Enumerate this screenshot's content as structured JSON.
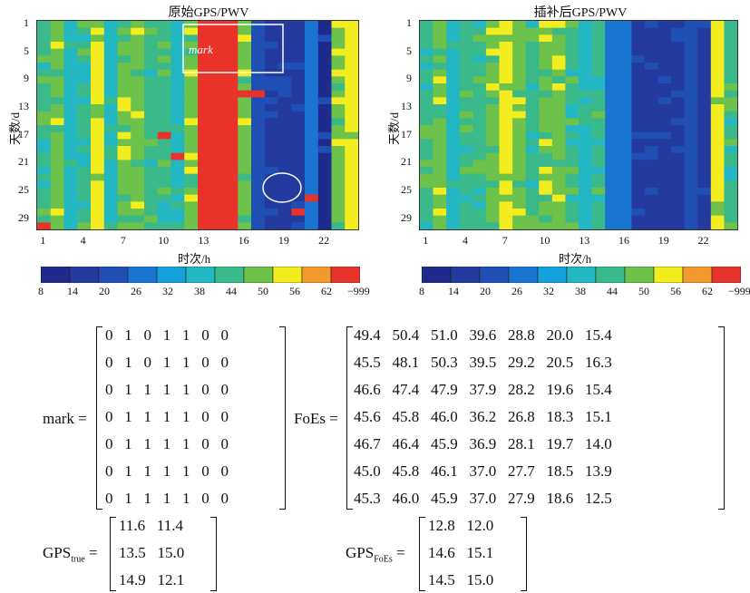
{
  "left_title": "原始GPS/PWV",
  "right_title": "插补后GPS/PWV",
  "ylabel": "天数/d",
  "xlabel": "时次/h",
  "ytick_labels": [
    "1",
    "5",
    "9",
    "13",
    "17",
    "21",
    "25",
    "29"
  ],
  "xtick_labels": [
    "1",
    "4",
    "7",
    "10",
    "13",
    "16",
    "19",
    "22"
  ],
  "mark_label": "mark",
  "colorbar": {
    "labels": [
      "8",
      "14",
      "20",
      "26",
      "32",
      "38",
      "44",
      "50",
      "56",
      "62",
      "−999"
    ],
    "colors": [
      "#1e2a8c",
      "#233a9f",
      "#1f4fb5",
      "#1a74d2",
      "#14a1dc",
      "#22b7c2",
      "#3ab98a",
      "#6cc24a",
      "#f3ec1f",
      "#f39a2e",
      "#e8322a"
    ]
  },
  "equations": {
    "mark_lhs": "mark =",
    "foes_lhs": "FoEs =",
    "gps_true_lhs": "GPS",
    "gps_true_sub": "true",
    "gps_foes_lhs": "GPS",
    "gps_foes_sub": "FoEs",
    "equals": "=",
    "mark_rows": [
      "0   1   0   1   1   0   0",
      "0   1   0   1   1   0   0",
      "0   1   1   1   1   0   0",
      "0   1   1   1   1   0   0",
      "0   1   1   1   1   0   0",
      "0   1   1   1   1   0   0",
      "0   1   1   1   1   0   0"
    ],
    "foes_rows": [
      "49.4   50.4   51.0   39.6   28.8   20.0   15.4",
      "45.5   48.1   50.3   39.5   29.2   20.5   16.3",
      "46.6   47.4   47.9   37.9   28.2   19.6   15.4",
      "45.6   45.8   46.0   36.2   26.8   18.3   15.1",
      "46.7   46.4   45.9   36.9   28.1   19.7   14.0",
      "45.0   45.8   46.1   37.0   27.7   18.5   13.9",
      "45.3   46.0   45.9   37.0   27.9   18.6   12.5"
    ],
    "gps_true_rows": [
      "11.6   11.4",
      "13.5   15.0",
      "14.9   12.1"
    ],
    "gps_foes_rows": [
      "12.8   12.0",
      "14.6   15.1",
      "14.5   15.0"
    ]
  }
}
